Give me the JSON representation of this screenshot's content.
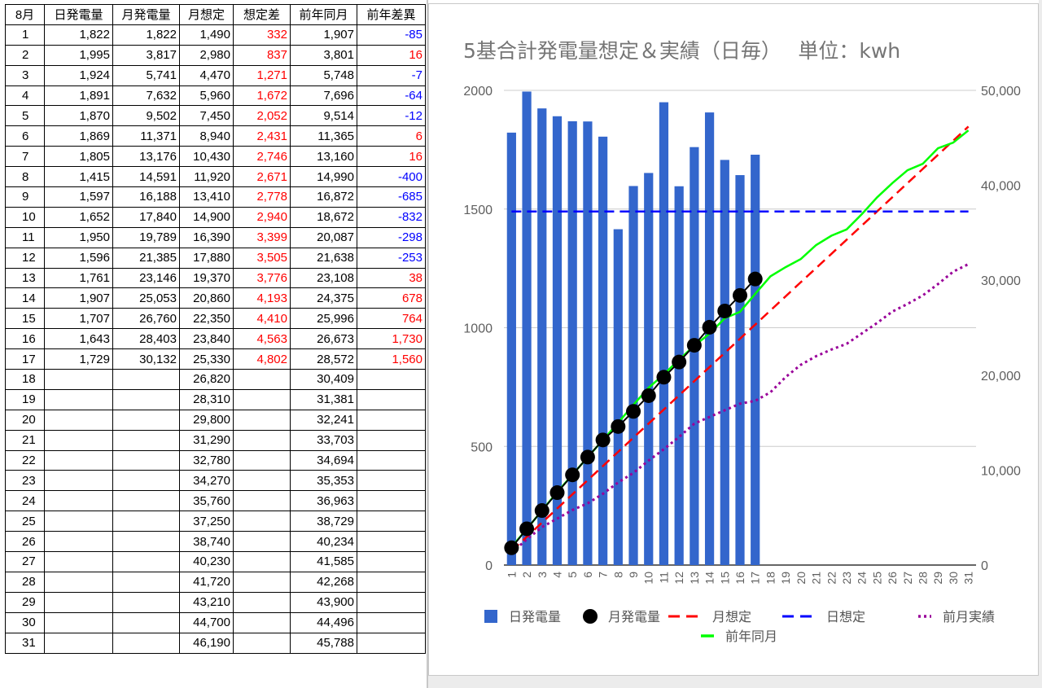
{
  "table": {
    "headers": [
      "8月",
      "日発電量",
      "月発電量",
      "月想定",
      "想定差",
      "前年同月",
      "前年差異"
    ],
    "rows": [
      {
        "day": "1",
        "daily": "1,822",
        "monthly": "1,822",
        "plan": "1,490",
        "plan_diff": "332",
        "prev_year": "1,907",
        "prev_diff": "-85"
      },
      {
        "day": "2",
        "daily": "1,995",
        "monthly": "3,817",
        "plan": "2,980",
        "plan_diff": "837",
        "prev_year": "3,801",
        "prev_diff": "16"
      },
      {
        "day": "3",
        "daily": "1,924",
        "monthly": "5,741",
        "plan": "4,470",
        "plan_diff": "1,271",
        "prev_year": "5,748",
        "prev_diff": "-7"
      },
      {
        "day": "4",
        "daily": "1,891",
        "monthly": "7,632",
        "plan": "5,960",
        "plan_diff": "1,672",
        "prev_year": "7,696",
        "prev_diff": "-64"
      },
      {
        "day": "5",
        "daily": "1,870",
        "monthly": "9,502",
        "plan": "7,450",
        "plan_diff": "2,052",
        "prev_year": "9,514",
        "prev_diff": "-12"
      },
      {
        "day": "6",
        "daily": "1,869",
        "monthly": "11,371",
        "plan": "8,940",
        "plan_diff": "2,431",
        "prev_year": "11,365",
        "prev_diff": "6"
      },
      {
        "day": "7",
        "daily": "1,805",
        "monthly": "13,176",
        "plan": "10,430",
        "plan_diff": "2,746",
        "prev_year": "13,160",
        "prev_diff": "16"
      },
      {
        "day": "8",
        "daily": "1,415",
        "monthly": "14,591",
        "plan": "11,920",
        "plan_diff": "2,671",
        "prev_year": "14,990",
        "prev_diff": "-400"
      },
      {
        "day": "9",
        "daily": "1,597",
        "monthly": "16,188",
        "plan": "13,410",
        "plan_diff": "2,778",
        "prev_year": "16,872",
        "prev_diff": "-685"
      },
      {
        "day": "10",
        "daily": "1,652",
        "monthly": "17,840",
        "plan": "14,900",
        "plan_diff": "2,940",
        "prev_year": "18,672",
        "prev_diff": "-832"
      },
      {
        "day": "11",
        "daily": "1,950",
        "monthly": "19,789",
        "plan": "16,390",
        "plan_diff": "3,399",
        "prev_year": "20,087",
        "prev_diff": "-298"
      },
      {
        "day": "12",
        "daily": "1,596",
        "monthly": "21,385",
        "plan": "17,880",
        "plan_diff": "3,505",
        "prev_year": "21,638",
        "prev_diff": "-253"
      },
      {
        "day": "13",
        "daily": "1,761",
        "monthly": "23,146",
        "plan": "19,370",
        "plan_diff": "3,776",
        "prev_year": "23,108",
        "prev_diff": "38"
      },
      {
        "day": "14",
        "daily": "1,907",
        "monthly": "25,053",
        "plan": "20,860",
        "plan_diff": "4,193",
        "prev_year": "24,375",
        "prev_diff": "678"
      },
      {
        "day": "15",
        "daily": "1,707",
        "monthly": "26,760",
        "plan": "22,350",
        "plan_diff": "4,410",
        "prev_year": "25,996",
        "prev_diff": "764"
      },
      {
        "day": "16",
        "daily": "1,643",
        "monthly": "28,403",
        "plan": "23,840",
        "plan_diff": "4,563",
        "prev_year": "26,673",
        "prev_diff": "1,730"
      },
      {
        "day": "17",
        "daily": "1,729",
        "monthly": "30,132",
        "plan": "25,330",
        "plan_diff": "4,802",
        "prev_year": "28,572",
        "prev_diff": "1,560"
      },
      {
        "day": "18",
        "daily": "",
        "monthly": "",
        "plan": "26,820",
        "plan_diff": "",
        "prev_year": "30,409",
        "prev_diff": ""
      },
      {
        "day": "19",
        "daily": "",
        "monthly": "",
        "plan": "28,310",
        "plan_diff": "",
        "prev_year": "31,381",
        "prev_diff": ""
      },
      {
        "day": "20",
        "daily": "",
        "monthly": "",
        "plan": "29,800",
        "plan_diff": "",
        "prev_year": "32,241",
        "prev_diff": ""
      },
      {
        "day": "21",
        "daily": "",
        "monthly": "",
        "plan": "31,290",
        "plan_diff": "",
        "prev_year": "33,703",
        "prev_diff": ""
      },
      {
        "day": "22",
        "daily": "",
        "monthly": "",
        "plan": "32,780",
        "plan_diff": "",
        "prev_year": "34,694",
        "prev_diff": ""
      },
      {
        "day": "23",
        "daily": "",
        "monthly": "",
        "plan": "34,270",
        "plan_diff": "",
        "prev_year": "35,353",
        "prev_diff": ""
      },
      {
        "day": "24",
        "daily": "",
        "monthly": "",
        "plan": "35,760",
        "plan_diff": "",
        "prev_year": "36,963",
        "prev_diff": ""
      },
      {
        "day": "25",
        "daily": "",
        "monthly": "",
        "plan": "37,250",
        "plan_diff": "",
        "prev_year": "38,729",
        "prev_diff": ""
      },
      {
        "day": "26",
        "daily": "",
        "monthly": "",
        "plan": "38,740",
        "plan_diff": "",
        "prev_year": "40,234",
        "prev_diff": ""
      },
      {
        "day": "27",
        "daily": "",
        "monthly": "",
        "plan": "40,230",
        "plan_diff": "",
        "prev_year": "41,585",
        "prev_diff": ""
      },
      {
        "day": "28",
        "daily": "",
        "monthly": "",
        "plan": "41,720",
        "plan_diff": "",
        "prev_year": "42,268",
        "prev_diff": ""
      },
      {
        "day": "29",
        "daily": "",
        "monthly": "",
        "plan": "43,210",
        "plan_diff": "",
        "prev_year": "43,900",
        "prev_diff": ""
      },
      {
        "day": "30",
        "daily": "",
        "monthly": "",
        "plan": "44,700",
        "plan_diff": "",
        "prev_year": "44,496",
        "prev_diff": ""
      },
      {
        "day": "31",
        "daily": "",
        "monthly": "",
        "plan": "46,190",
        "plan_diff": "",
        "prev_year": "45,788",
        "prev_diff": ""
      }
    ]
  },
  "colors": {
    "positive": "#ff0000",
    "negative": "#0000ff",
    "bar": "#3366cc",
    "monthly": "#000000",
    "plan": "#ff0000",
    "daily_plan": "#0000ff",
    "prev_month": "#990099",
    "prev_year": "#00ff00",
    "grid": "#cccccc"
  },
  "chart_data": {
    "type": "bar",
    "title": "5基合計発電量想定＆実績（日毎）　 単位：kwh",
    "categories": [
      "1",
      "2",
      "3",
      "4",
      "5",
      "6",
      "7",
      "8",
      "9",
      "10",
      "11",
      "12",
      "13",
      "14",
      "15",
      "16",
      "17",
      "18",
      "19",
      "20",
      "21",
      "22",
      "23",
      "24",
      "25",
      "26",
      "27",
      "28",
      "29",
      "30",
      "31"
    ],
    "y_left": {
      "min": 0,
      "max": 2000,
      "ticks": [
        "0",
        "500",
        "1000",
        "1500",
        "2000"
      ]
    },
    "y_right": {
      "min": 0,
      "max": 50000,
      "ticks": [
        "0",
        "10,000",
        "20,000",
        "30,000",
        "40,000",
        "50,000"
      ]
    },
    "grid": true,
    "legend_position": "bottom",
    "series": [
      {
        "name": "日発電量",
        "type": "bar",
        "axis": "left",
        "values": [
          1822,
          1995,
          1924,
          1891,
          1870,
          1869,
          1805,
          1415,
          1597,
          1652,
          1950,
          1596,
          1761,
          1907,
          1707,
          1643,
          1729,
          null,
          null,
          null,
          null,
          null,
          null,
          null,
          null,
          null,
          null,
          null,
          null,
          null,
          null
        ]
      },
      {
        "name": "月発電量",
        "type": "line-markers",
        "axis": "right",
        "values": [
          1822,
          3817,
          5741,
          7632,
          9502,
          11371,
          13176,
          14591,
          16188,
          17840,
          19789,
          21385,
          23146,
          25053,
          26760,
          28403,
          30132,
          null,
          null,
          null,
          null,
          null,
          null,
          null,
          null,
          null,
          null,
          null,
          null,
          null,
          null
        ]
      },
      {
        "name": "月想定",
        "type": "dashed-line",
        "axis": "right",
        "values": [
          1490,
          2980,
          4470,
          5960,
          7450,
          8940,
          10430,
          11920,
          13410,
          14900,
          16390,
          17880,
          19370,
          20860,
          22350,
          23840,
          25330,
          26820,
          28310,
          29800,
          31290,
          32780,
          34270,
          35760,
          37250,
          38740,
          40230,
          41720,
          43210,
          44700,
          46190
        ]
      },
      {
        "name": "日想定",
        "type": "dashed-line",
        "axis": "left",
        "values": [
          1490,
          1490,
          1490,
          1490,
          1490,
          1490,
          1490,
          1490,
          1490,
          1490,
          1490,
          1490,
          1490,
          1490,
          1490,
          1490,
          1490,
          1490,
          1490,
          1490,
          1490,
          1490,
          1490,
          1490,
          1490,
          1490,
          1490,
          1490,
          1490,
          1490,
          1490
        ]
      },
      {
        "name": "前月実績",
        "type": "dotted-line",
        "axis": "right",
        "values": [
          1300,
          2700,
          4000,
          4900,
          5800,
          6500,
          7500,
          8700,
          9700,
          11000,
          12200,
          13500,
          14900,
          15600,
          16300,
          17000,
          17300,
          18200,
          19800,
          21100,
          22000,
          22700,
          23300,
          24400,
          25500,
          26700,
          27500,
          28400,
          29600,
          30900,
          31700
        ]
      },
      {
        "name": "前年同月",
        "type": "line",
        "axis": "right",
        "values": [
          1907,
          3801,
          5748,
          7696,
          9514,
          11365,
          13160,
          14990,
          16872,
          18672,
          20087,
          21638,
          23108,
          24375,
          25996,
          26673,
          28572,
          30409,
          31381,
          32241,
          33703,
          34694,
          35353,
          36963,
          38729,
          40234,
          41585,
          42268,
          43900,
          44496,
          45788
        ]
      }
    ]
  }
}
